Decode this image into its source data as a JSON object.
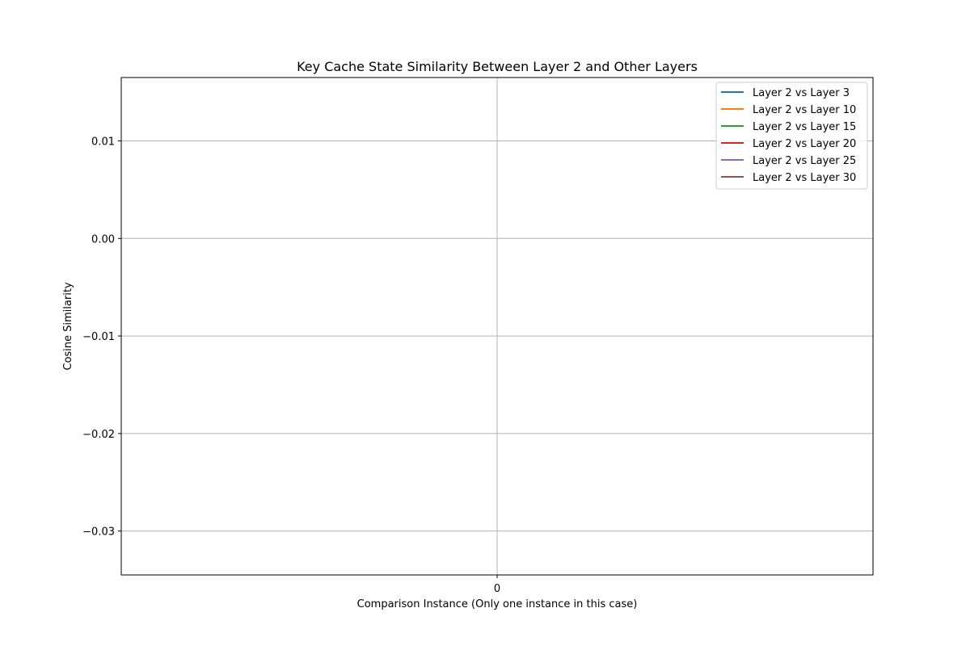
{
  "chart_data": {
    "type": "line",
    "title": "Key Cache State Similarity Between Layer 2 and Other Layers",
    "xlabel": "Comparison Instance (Only one instance in this case)",
    "ylabel": "Cosine Similarity",
    "xlim": [
      -0.055,
      0.055
    ],
    "ylim": [
      -0.0345,
      0.0165
    ],
    "x_ticks": [
      0
    ],
    "x_tick_labels": [
      "0"
    ],
    "y_ticks": [
      0.01,
      0.0,
      -0.01,
      -0.02,
      -0.03
    ],
    "y_tick_labels": [
      "0.01",
      "0.00",
      "−0.01",
      "−0.02",
      "−0.03"
    ],
    "grid": true,
    "legend_position": "top-right",
    "series": [
      {
        "name": "Layer 2 vs Layer 3",
        "color": "#1f77b4",
        "x": [],
        "values": []
      },
      {
        "name": "Layer 2 vs Layer 10",
        "color": "#ff7f0e",
        "x": [],
        "values": []
      },
      {
        "name": "Layer 2 vs Layer 15",
        "color": "#2ca02c",
        "x": [],
        "values": []
      },
      {
        "name": "Layer 2 vs Layer 20",
        "color": "#d62728",
        "x": [],
        "values": []
      },
      {
        "name": "Layer 2 vs Layer 25",
        "color": "#9467bd",
        "x": [],
        "values": []
      },
      {
        "name": "Layer 2 vs Layer 30",
        "color": "#8c564b",
        "x": [],
        "values": []
      }
    ]
  }
}
